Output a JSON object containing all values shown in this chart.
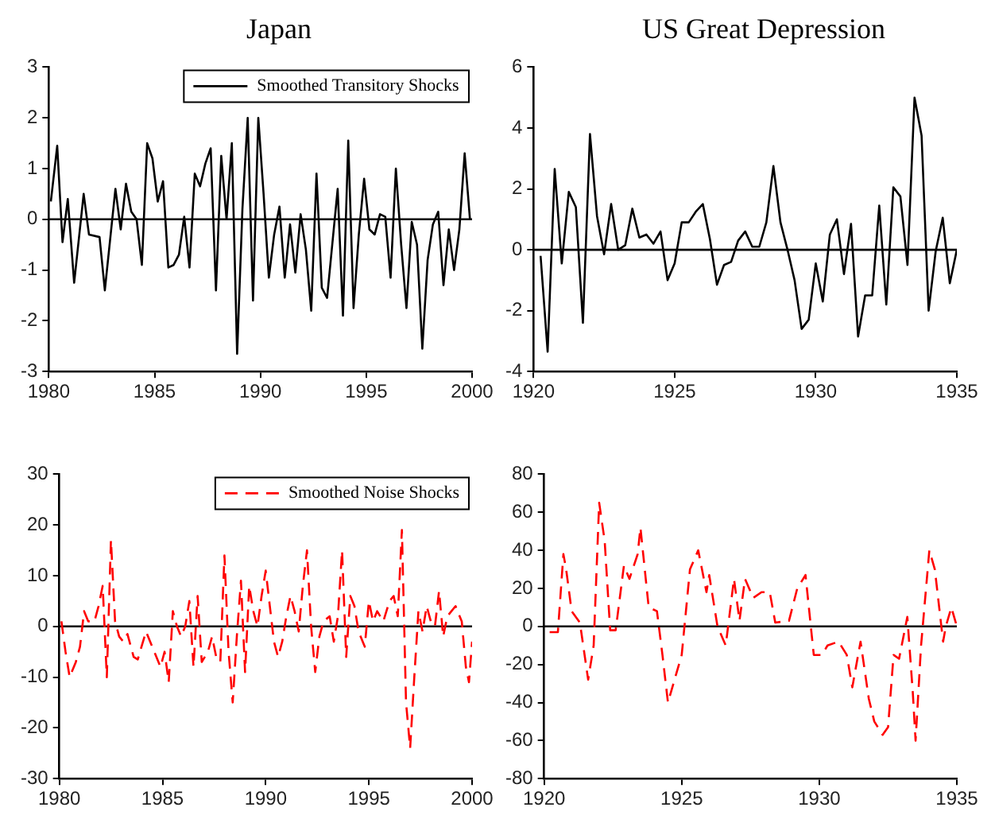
{
  "chart_data": [
    {
      "type": "line",
      "title": "Japan",
      "legend": "top right",
      "grid": false,
      "marker": "none",
      "line_style": "solid",
      "xlim": [
        1980,
        2000
      ],
      "xticks": [
        1980,
        1985,
        1990,
        1995,
        2000
      ],
      "ylim": [
        -3,
        3
      ],
      "yticks": [
        -3,
        -2,
        -1,
        0,
        1,
        2,
        3
      ],
      "ref_lines": [
        {
          "axis": "y",
          "value": 0,
          "color": "#000000"
        }
      ],
      "series": [
        {
          "name": "Smoothed Transitory Shocks",
          "color": "#000000",
          "x": [
            1980.1,
            1980.4,
            1980.65,
            1980.9,
            1981.2,
            1981.65,
            1981.9,
            1982.4,
            1982.65,
            1983.15,
            1983.4,
            1983.65,
            1983.9,
            1984.15,
            1984.4,
            1984.65,
            1984.9,
            1985.15,
            1985.4,
            1985.65,
            1985.9,
            1986.15,
            1986.4,
            1986.65,
            1986.9,
            1987.15,
            1987.4,
            1987.65,
            1987.9,
            1988.15,
            1988.4,
            1988.65,
            1988.9,
            1989.15,
            1989.4,
            1989.65,
            1989.9,
            1990.15,
            1990.4,
            1990.65,
            1990.9,
            1991.15,
            1991.4,
            1991.65,
            1991.9,
            1992.15,
            1992.4,
            1992.65,
            1992.9,
            1993.15,
            1993.65,
            1993.9,
            1994.15,
            1994.4,
            1994.65,
            1994.9,
            1995.15,
            1995.4,
            1995.65,
            1995.9,
            1996.15,
            1996.4,
            1996.65,
            1996.9,
            1997.15,
            1997.4,
            1997.65,
            1997.9,
            1998.15,
            1998.4,
            1998.65,
            1998.9,
            1999.15,
            1999.4,
            1999.65,
            1999.9
          ],
          "values": [
            0.35,
            1.45,
            -0.45,
            0.4,
            -1.25,
            0.5,
            -0.3,
            -0.35,
            -1.4,
            0.6,
            -0.2,
            0.7,
            0.15,
            0,
            -0.9,
            1.5,
            1.2,
            0.35,
            0.75,
            -0.95,
            -0.9,
            -0.7,
            0.05,
            -0.95,
            0.9,
            0.65,
            1.1,
            1.4,
            -1.4,
            1.25,
            0,
            1.5,
            -2.65,
            0.2,
            2,
            -1.6,
            2,
            0.5,
            -1.15,
            -0.3,
            0.25,
            -1.15,
            -0.1,
            -1.05,
            0.1,
            -0.6,
            -1.8,
            0.9,
            -1.35,
            -1.55,
            0.6,
            -1.9,
            1.55,
            -1.75,
            -0.3,
            0.8,
            -0.2,
            -0.3,
            0.1,
            0.05,
            -1.15,
            1,
            -0.5,
            -1.75,
            -0.05,
            -0.5,
            -2.55,
            -0.8,
            -0.1,
            0.15,
            -1.3,
            -0.2,
            -1,
            -0.2,
            1.3,
            0
          ]
        }
      ]
    },
    {
      "type": "line",
      "title": "US Great Depression",
      "legend": false,
      "grid": false,
      "marker": "none",
      "line_style": "solid",
      "xlim": [
        1920,
        1935
      ],
      "xticks": [
        1920,
        1925,
        1930,
        1935
      ],
      "ylim": [
        -4,
        6
      ],
      "yticks": [
        -4,
        -2,
        0,
        2,
        4,
        6
      ],
      "ref_lines": [
        {
          "axis": "y",
          "value": 0,
          "color": "#000000"
        }
      ],
      "series": [
        {
          "color": "#000000",
          "x": [
            1920.25,
            1920.5,
            1920.75,
            1921,
            1921.25,
            1921.5,
            1921.75,
            1922,
            1922.25,
            1922.5,
            1922.75,
            1923,
            1923.25,
            1923.5,
            1923.75,
            1924,
            1924.25,
            1924.5,
            1924.75,
            1925,
            1925.25,
            1925.5,
            1925.75,
            1926,
            1926.25,
            1926.5,
            1926.75,
            1927,
            1927.25,
            1927.5,
            1927.75,
            1928,
            1928.25,
            1928.5,
            1928.75,
            1929,
            1929.25,
            1929.5,
            1929.75,
            1930,
            1930.25,
            1930.5,
            1930.75,
            1931,
            1931.25,
            1931.5,
            1931.75,
            1932,
            1932.25,
            1932.5,
            1932.75,
            1933,
            1933.25,
            1933.5,
            1933.75,
            1934,
            1934.25,
            1934.5,
            1934.75,
            1935
          ],
          "values": [
            -0.2,
            -3.35,
            2.65,
            -0.45,
            1.9,
            1.4,
            -2.4,
            3.8,
            1.1,
            -0.15,
            1.5,
            0,
            0.15,
            1.35,
            0.4,
            0.5,
            0.2,
            0.6,
            -1,
            -0.45,
            0.9,
            0.9,
            1.25,
            1.5,
            0.35,
            -1.15,
            -0.5,
            -0.4,
            0.3,
            0.6,
            0.1,
            0.1,
            0.9,
            2.75,
            0.9,
            0,
            -1,
            -2.6,
            -2.3,
            -0.45,
            -1.7,
            0.5,
            1,
            -0.8,
            0.85,
            -2.85,
            -1.5,
            -1.5,
            1.45,
            -1.8,
            2.05,
            1.75,
            -0.5,
            5,
            3.75,
            -2,
            -0.05,
            1.05,
            -1.1,
            0
          ]
        }
      ]
    },
    {
      "type": "line",
      "legend": "top right",
      "grid": false,
      "marker": "none",
      "line_style": "dashed",
      "xlim": [
        1980,
        2000
      ],
      "xticks": [
        1980,
        1985,
        1990,
        1995,
        2000
      ],
      "ylim": [
        -30,
        30
      ],
      "yticks": [
        -30,
        -20,
        -10,
        0,
        10,
        20,
        30
      ],
      "ref_lines": [
        {
          "axis": "y",
          "value": 0,
          "color": "#000000"
        }
      ],
      "series": [
        {
          "name": "Smoothed Noise Shocks",
          "color": "#ff0000",
          "x": [
            1980.1,
            1980.3,
            1980.5,
            1980.8,
            1981,
            1981.2,
            1981.4,
            1981.7,
            1981.9,
            1982.1,
            1982.3,
            1982.5,
            1982.7,
            1982.9,
            1983.1,
            1983.3,
            1983.6,
            1983.8,
            1984.2,
            1984.5,
            1984.7,
            1984.9,
            1985.1,
            1985.3,
            1985.5,
            1985.7,
            1985.9,
            1986.1,
            1986.3,
            1986.5,
            1986.7,
            1986.9,
            1987.2,
            1987.4,
            1987.6,
            1987.8,
            1988,
            1988.2,
            1988.4,
            1988.6,
            1988.8,
            1989,
            1989.2,
            1989.4,
            1989.6,
            1989.8,
            1990,
            1990.2,
            1990.4,
            1990.6,
            1990.8,
            1991,
            1991.2,
            1991.4,
            1991.6,
            1991.8,
            1992,
            1992.2,
            1992.4,
            1992.6,
            1992.8,
            1993.1,
            1993.3,
            1993.5,
            1993.7,
            1993.9,
            1994.1,
            1994.3,
            1994.5,
            1994.8,
            1995,
            1995.2,
            1995.4,
            1995.7,
            1996,
            1996.2,
            1996.4,
            1996.6,
            1996.8,
            1997,
            1997.2,
            1997.4,
            1997.6,
            1997.8,
            1998,
            1998.2,
            1998.4,
            1998.6,
            1998.8,
            1999.2,
            1999.5,
            1999.7,
            1999.85,
            2000
          ],
          "values": [
            1,
            -5,
            -10,
            -7,
            -4,
            3,
            1,
            1,
            4,
            8,
            -10,
            17,
            1,
            -2,
            -3,
            -1.5,
            -6,
            -6.5,
            -1,
            -4,
            -6,
            -8,
            -5,
            -11,
            3,
            0,
            -2,
            0,
            5,
            -8,
            6,
            -7,
            -5,
            -2,
            -6,
            -7,
            14,
            -5,
            -15,
            -2,
            9,
            -9,
            8,
            3,
            0,
            6,
            11,
            4,
            -3,
            -6,
            -3,
            2,
            6,
            3,
            -1,
            8,
            15,
            0,
            -9,
            -2,
            1,
            2,
            -3,
            2,
            15,
            -6,
            6,
            4,
            -1,
            -4,
            5,
            1,
            3,
            1,
            5,
            6,
            2,
            19,
            -15,
            -24,
            -10,
            3,
            -1,
            4,
            1,
            0,
            7,
            -2,
            2,
            4,
            1,
            -8,
            -11,
            -3
          ]
        }
      ]
    },
    {
      "type": "line",
      "legend": false,
      "grid": false,
      "marker": "none",
      "line_style": "dashed",
      "xlim": [
        1920,
        1935
      ],
      "xticks": [
        1920,
        1925,
        1930,
        1935
      ],
      "ylim": [
        -80,
        80
      ],
      "yticks": [
        -80,
        -60,
        -40,
        -20,
        0,
        20,
        40,
        60,
        80
      ],
      "ref_lines": [
        {
          "axis": "y",
          "value": 0,
          "color": "#000000"
        }
      ],
      "series": [
        {
          "color": "#ff0000",
          "x": [
            1920.2,
            1920.5,
            1920.7,
            1920.8,
            1921,
            1921.3,
            1921.6,
            1921.8,
            1922,
            1922.2,
            1922.4,
            1922.6,
            1922.9,
            1923.1,
            1923.4,
            1923.5,
            1923.8,
            1924.1,
            1924.3,
            1924.5,
            1924.8,
            1925,
            1925.3,
            1925.6,
            1925.9,
            1926,
            1926.3,
            1926.6,
            1926.9,
            1927.1,
            1927.3,
            1927.6,
            1927.9,
            1928.2,
            1928.4,
            1928.9,
            1929.2,
            1929.5,
            1929.8,
            1930.1,
            1930.3,
            1930.7,
            1931,
            1931.2,
            1931.5,
            1931.8,
            1932,
            1932.3,
            1932.5,
            1932.7,
            1932.9,
            1933.2,
            1933.4,
            1933.5,
            1933.7,
            1934,
            1934.2,
            1934.5,
            1934.6,
            1934.8,
            1935
          ],
          "values": [
            -3,
            -3,
            38,
            30,
            8,
            2,
            -28,
            -10,
            65,
            45,
            -2,
            -2,
            32,
            25,
            38,
            52,
            10,
            8,
            -15,
            -40,
            -25,
            -15,
            30,
            40,
            18,
            27,
            0,
            -10,
            25,
            3,
            25,
            15,
            18,
            18,
            2,
            3,
            20,
            27,
            -15,
            -15,
            -10,
            -8,
            -15,
            -32,
            -8,
            -38,
            -50,
            -57,
            -53,
            -15,
            -17,
            5,
            -35,
            -60,
            -10,
            40,
            30,
            -8,
            0,
            10,
            0
          ]
        }
      ]
    }
  ]
}
